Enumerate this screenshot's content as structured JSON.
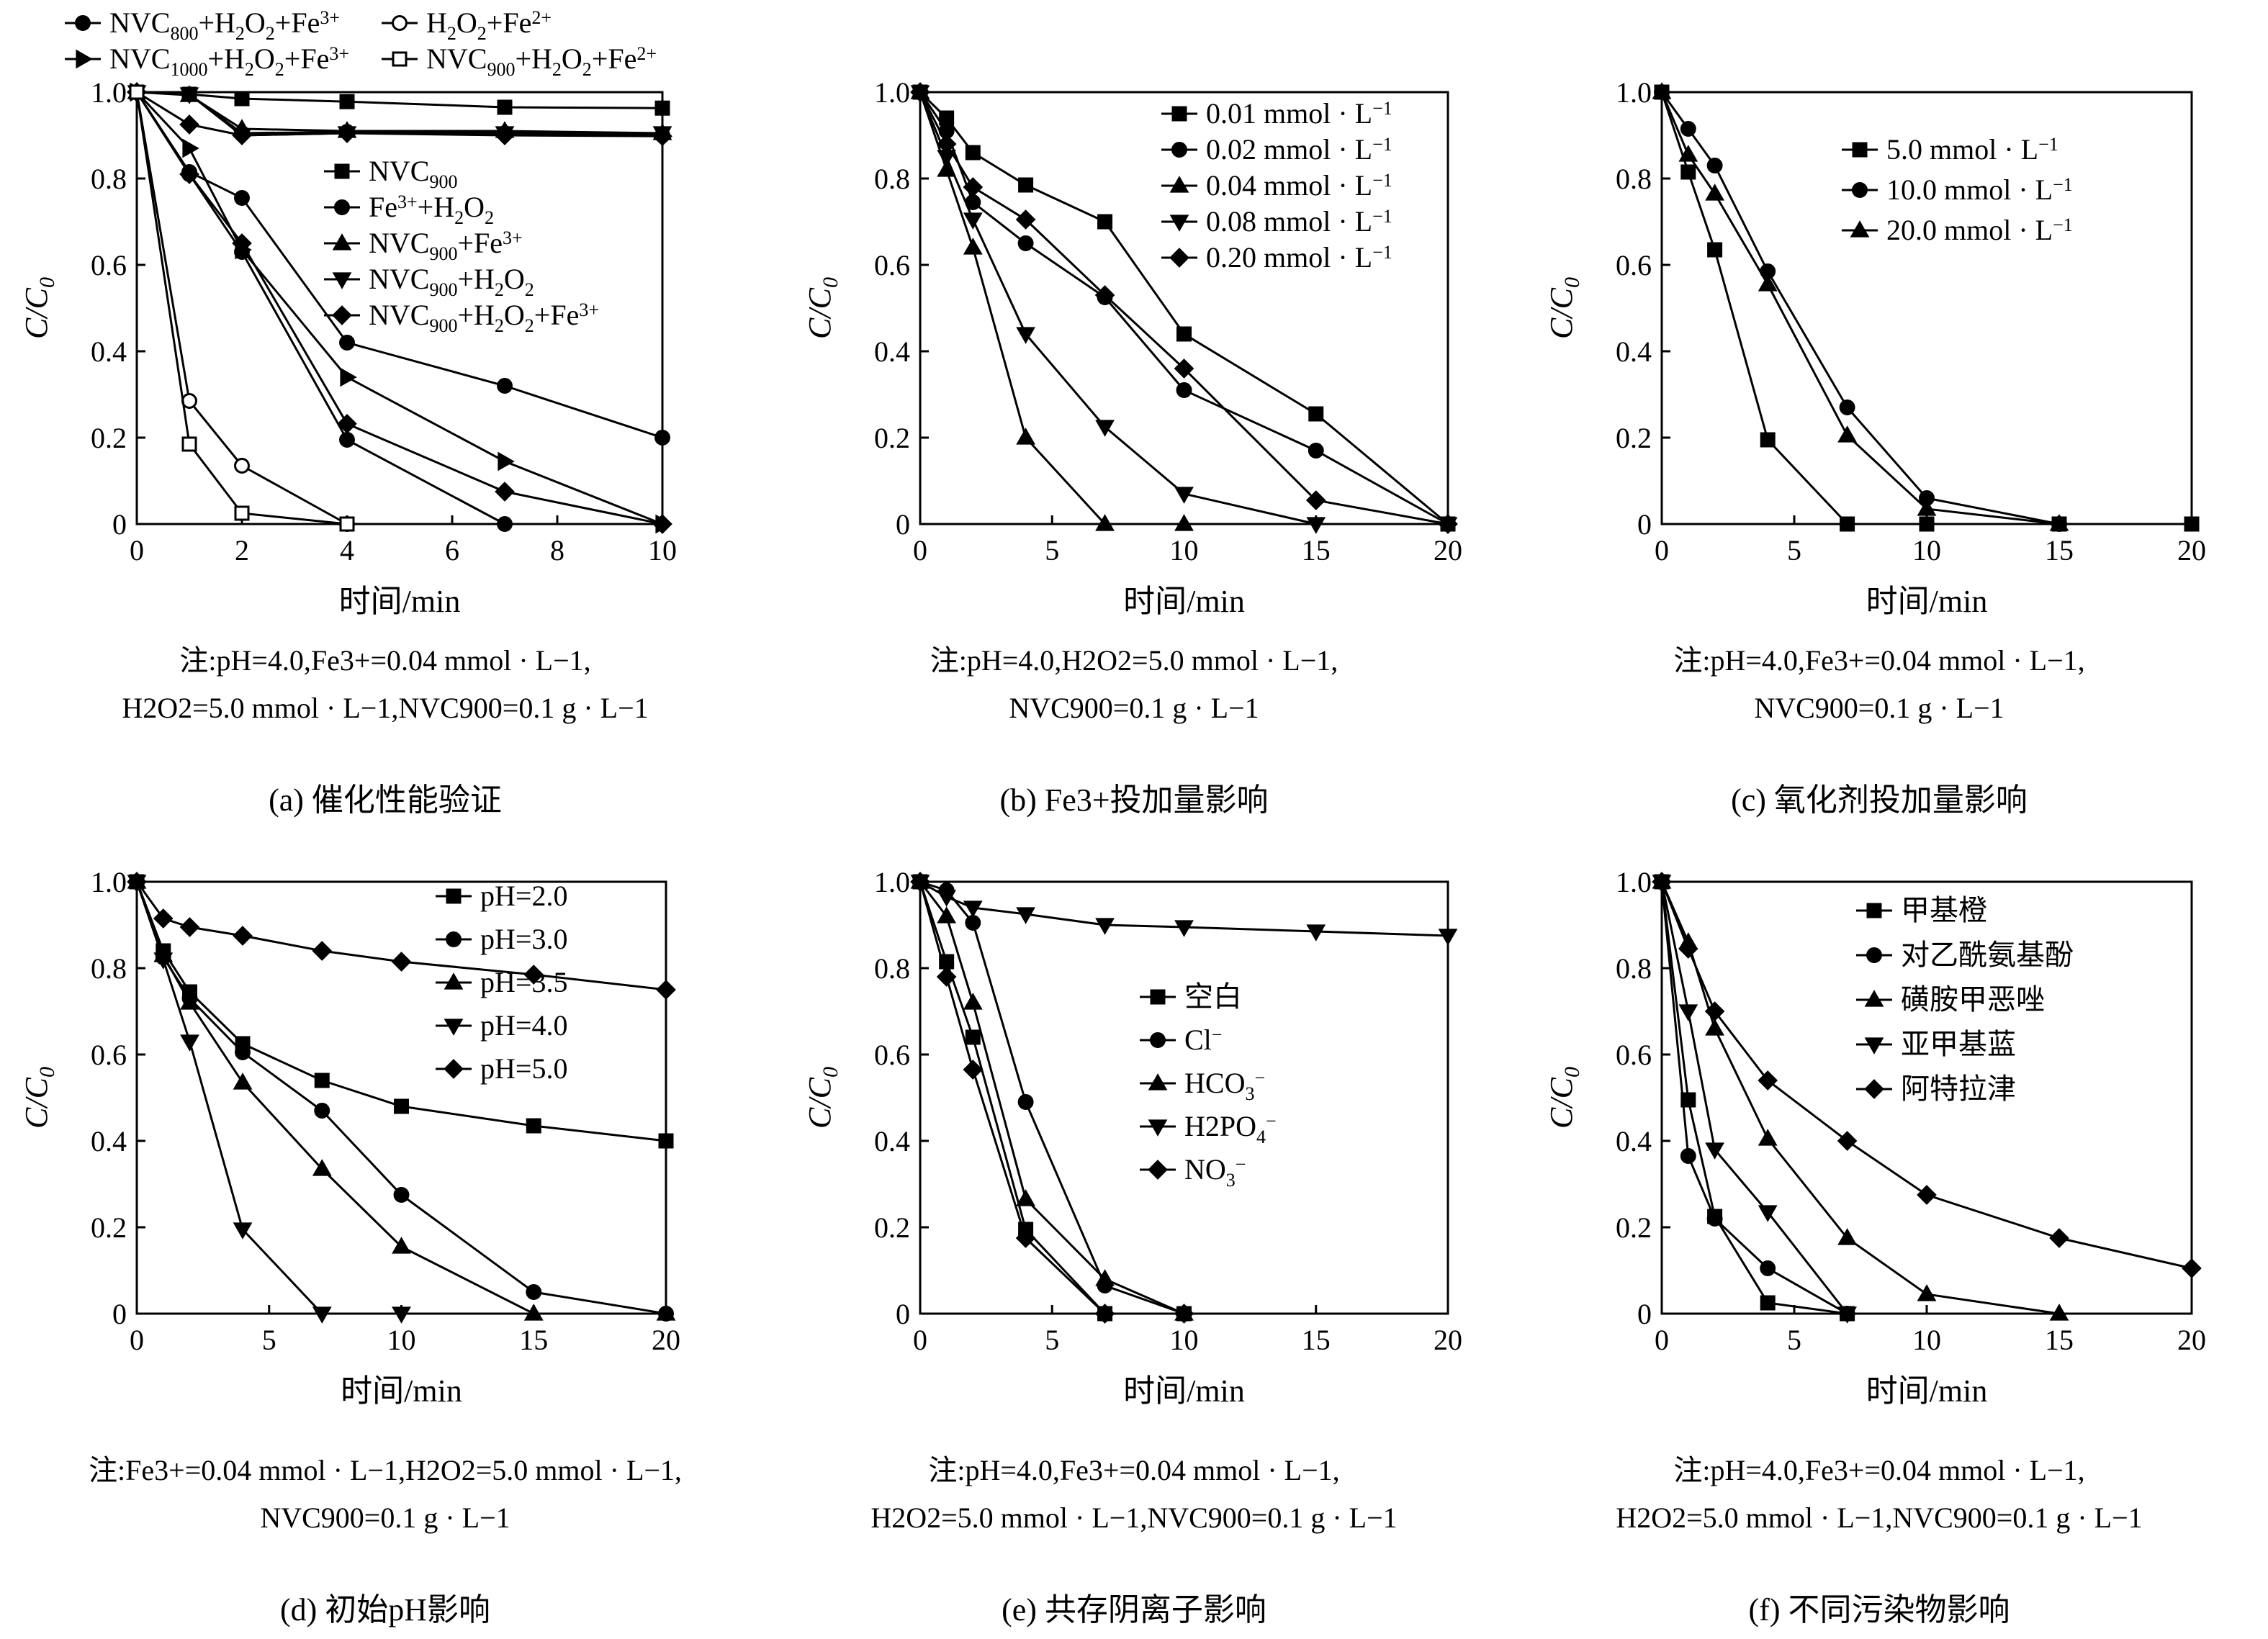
{
  "chart_data": [
    {
      "type": "line",
      "panel": "a",
      "xlabel": "时间/min",
      "ylabel": "C/C0",
      "xlim": [
        0,
        10
      ],
      "ylim": [
        0,
        1.0
      ],
      "xticks": [
        0,
        2,
        4,
        6,
        8,
        10
      ],
      "yticks": [
        0,
        0.2,
        0.4,
        0.6,
        0.8,
        1.0
      ],
      "ytick_labels": [
        "0",
        "0.2",
        "0.4",
        "0.6",
        "0.8",
        "1.0"
      ],
      "legend_top": [
        "NVC800+H2O2+Fe3+",
        "H2O2+Fe2+",
        "NVC1000+H2O2+Fe3+",
        "NVC900+H2O2+Fe2+"
      ],
      "legend_inner": [
        "NVC900",
        "Fe3++H2O2",
        "NVC900+Fe3+",
        "NVC900+H2O2",
        "NVC900+H2O2+Fe3+"
      ],
      "series": [
        {
          "name": "NVC900",
          "marker": "square",
          "x": [
            0,
            1,
            2,
            4,
            7,
            10
          ],
          "y": [
            1.0,
            0.995,
            0.985,
            0.978,
            0.965,
            0.963
          ]
        },
        {
          "name": "Fe3++H2O2",
          "marker": "circle",
          "x": [
            0,
            1,
            2,
            4,
            7,
            10
          ],
          "y": [
            1.0,
            0.995,
            0.905,
            0.908,
            0.905,
            0.9
          ]
        },
        {
          "name": "NVC900+Fe3+",
          "marker": "triangle-up",
          "x": [
            0,
            1,
            2,
            4,
            7,
            10
          ],
          "y": [
            1.0,
            0.993,
            0.915,
            0.91,
            0.91,
            0.905
          ]
        },
        {
          "name": "NVC900+H2O2",
          "marker": "triangle-down",
          "x": [
            0,
            1,
            2,
            4,
            7,
            10
          ],
          "y": [
            1.0,
            0.995,
            0.9,
            0.905,
            0.905,
            0.905
          ]
        },
        {
          "name": "NVC900+H2O2+Fe3+",
          "marker": "diamond",
          "x": [
            0,
            1,
            2,
            4,
            7,
            10
          ],
          "y": [
            1.0,
            0.925,
            0.9,
            0.905,
            0.9,
            0.898
          ]
        },
        {
          "name": "NVC800+H2O2+Fe3+",
          "marker": "circle",
          "x": [
            0,
            1,
            2,
            4,
            7,
            10
          ],
          "y": [
            1.0,
            0.815,
            0.755,
            0.42,
            0.32,
            0.2
          ]
        },
        {
          "name": "NVC1000+H2O2+Fe3+",
          "marker": "triangle-right",
          "x": [
            0,
            1,
            2,
            4,
            7,
            10
          ],
          "y": [
            1.0,
            0.87,
            0.635,
            0.34,
            0.145,
            0.0
          ]
        },
        {
          "name": "NVC900+H2O2+Fe3+ (b)",
          "marker": "diamond",
          "x": [
            0,
            1,
            2,
            4,
            7,
            10
          ],
          "y": [
            1.0,
            0.81,
            0.65,
            0.232,
            0.075,
            0.0
          ]
        },
        {
          "name": "NVC900+H2O2+Fe3+ (c)",
          "marker": "circle",
          "x": [
            0,
            1,
            2,
            4,
            7
          ],
          "y": [
            1.0,
            0.81,
            0.63,
            0.195,
            0.0
          ]
        },
        {
          "name": "H2O2+Fe2+",
          "marker": "circle-open",
          "x": [
            0,
            1,
            2,
            4
          ],
          "y": [
            1.0,
            0.285,
            0.135,
            0.0
          ]
        },
        {
          "name": "NVC900+H2O2+Fe2+",
          "marker": "square-open",
          "x": [
            0,
            1,
            2,
            4
          ],
          "y": [
            1.0,
            0.185,
            0.025,
            0.0
          ]
        }
      ]
    },
    {
      "type": "line",
      "panel": "b",
      "xlabel": "时间/min",
      "ylabel": "C/C0",
      "xlim": [
        0,
        20
      ],
      "ylim": [
        0,
        1.0
      ],
      "xticks": [
        0,
        5,
        10,
        15,
        20
      ],
      "yticks": [
        0,
        0.2,
        0.4,
        0.6,
        0.8,
        1.0
      ],
      "ytick_labels": [
        "0",
        "0.2",
        "0.4",
        "0.6",
        "0.8",
        "1.0"
      ],
      "series": [
        {
          "name": "0.01 mmol · L−1",
          "marker": "square",
          "x": [
            0,
            1,
            2,
            4,
            7,
            10,
            15,
            20
          ],
          "y": [
            1.0,
            0.94,
            0.86,
            0.785,
            0.7,
            0.44,
            0.255,
            0.0
          ]
        },
        {
          "name": "0.02 mmol · L−1",
          "marker": "circle",
          "x": [
            0,
            1,
            2,
            4,
            7,
            10,
            15,
            20
          ],
          "y": [
            1.0,
            0.91,
            0.745,
            0.65,
            0.525,
            0.31,
            0.17,
            0.0
          ]
        },
        {
          "name": "0.04 mmol · L−1",
          "marker": "triangle-up",
          "x": [
            0,
            1,
            2,
            4,
            7,
            10
          ],
          "y": [
            1.0,
            0.82,
            0.64,
            0.2,
            0.0,
            0.0
          ]
        },
        {
          "name": "0.08 mmol · L−1",
          "marker": "triangle-down",
          "x": [
            0,
            1,
            2,
            4,
            7,
            10,
            15,
            20
          ],
          "y": [
            1.0,
            0.85,
            0.705,
            0.44,
            0.225,
            0.07,
            0.0,
            0.0
          ]
        },
        {
          "name": "0.20 mmol · L−1",
          "marker": "diamond",
          "x": [
            0,
            1,
            2,
            4,
            7,
            10,
            15,
            20
          ],
          "y": [
            1.0,
            0.88,
            0.78,
            0.705,
            0.53,
            0.36,
            0.055,
            0.0
          ]
        }
      ]
    },
    {
      "type": "line",
      "panel": "c",
      "xlabel": "时间/min",
      "ylabel": "C/C0",
      "xlim": [
        0,
        20
      ],
      "ylim": [
        0,
        1.0
      ],
      "xticks": [
        0,
        5,
        10,
        15,
        20
      ],
      "yticks": [
        0,
        0.2,
        0.4,
        0.6,
        0.8,
        1.0
      ],
      "ytick_labels": [
        "0",
        "0.2",
        "0.4",
        "0.6",
        "0.8",
        "1.0"
      ],
      "series": [
        {
          "name": "5.0 mmol · L−1",
          "marker": "square",
          "x": [
            0,
            1,
            2,
            4,
            7,
            10,
            15,
            20
          ],
          "y": [
            1.0,
            0.815,
            0.635,
            0.195,
            0.0,
            0.0,
            0.0,
            0.0
          ]
        },
        {
          "name": "10.0 mmol · L−1",
          "marker": "circle",
          "x": [
            0,
            1,
            2,
            4,
            7,
            10,
            15
          ],
          "y": [
            1.0,
            0.915,
            0.83,
            0.585,
            0.27,
            0.06,
            0.0
          ]
        },
        {
          "name": "20.0 mmol · L−1",
          "marker": "triangle-up",
          "x": [
            0,
            1,
            2,
            4,
            7,
            10,
            15
          ],
          "y": [
            1.0,
            0.855,
            0.765,
            0.555,
            0.205,
            0.035,
            0.0
          ]
        }
      ]
    },
    {
      "type": "line",
      "panel": "d",
      "xlabel": "时间/min",
      "ylabel": "C/C0",
      "xlim": [
        0,
        20
      ],
      "ylim": [
        0,
        1.0
      ],
      "xticks": [
        0,
        5,
        10,
        15,
        20
      ],
      "yticks": [
        0,
        0.2,
        0.4,
        0.6,
        0.8,
        1.0
      ],
      "ytick_labels": [
        "0",
        "0.2",
        "0.4",
        "0.6",
        "0.8",
        "1.0"
      ],
      "series": [
        {
          "name": "pH=2.0",
          "marker": "square",
          "x": [
            0,
            1,
            2,
            4,
            7,
            10,
            15,
            20
          ],
          "y": [
            1.0,
            0.84,
            0.745,
            0.625,
            0.54,
            0.48,
            0.435,
            0.4
          ]
        },
        {
          "name": "pH=3.0",
          "marker": "circle",
          "x": [
            0,
            1,
            2,
            4,
            7,
            10,
            15,
            20
          ],
          "y": [
            1.0,
            0.825,
            0.73,
            0.605,
            0.47,
            0.275,
            0.05,
            0.0
          ]
        },
        {
          "name": "pH=3.5",
          "marker": "triangle-up",
          "x": [
            0,
            1,
            2,
            4,
            7,
            10,
            15,
            20
          ],
          "y": [
            1.0,
            0.83,
            0.72,
            0.535,
            0.335,
            0.155,
            0.0,
            0.0
          ]
        },
        {
          "name": "pH=4.0",
          "marker": "triangle-down",
          "x": [
            0,
            1,
            2,
            4,
            7,
            10
          ],
          "y": [
            1.0,
            0.82,
            0.63,
            0.195,
            0.0,
            0.0
          ]
        },
        {
          "name": "pH=5.0",
          "marker": "diamond",
          "x": [
            0,
            1,
            2,
            4,
            7,
            10,
            15,
            20
          ],
          "y": [
            1.0,
            0.915,
            0.895,
            0.875,
            0.84,
            0.815,
            0.785,
            0.75
          ]
        }
      ]
    },
    {
      "type": "line",
      "panel": "e",
      "xlabel": "时间/min",
      "ylabel": "C/C0",
      "xlim": [
        0,
        20
      ],
      "ylim": [
        0,
        1.0
      ],
      "xticks": [
        0,
        5,
        10,
        15,
        20
      ],
      "yticks": [
        0,
        0.2,
        0.4,
        0.6,
        0.8,
        1.0
      ],
      "ytick_labels": [
        "0",
        "0.2",
        "0.4",
        "0.6",
        "0.8",
        "1.0"
      ],
      "series": [
        {
          "name": "空白",
          "marker": "square",
          "x": [
            0,
            1,
            2,
            4,
            7,
            10
          ],
          "y": [
            1.0,
            0.815,
            0.64,
            0.195,
            0.0,
            0.0
          ]
        },
        {
          "name": "Cl−",
          "marker": "circle",
          "x": [
            0,
            1,
            2,
            4,
            7,
            10
          ],
          "y": [
            1.0,
            0.98,
            0.905,
            0.49,
            0.065,
            0.0
          ]
        },
        {
          "name": "HCO3−",
          "marker": "triangle-up",
          "x": [
            0,
            1,
            2,
            4,
            7,
            10
          ],
          "y": [
            1.0,
            0.92,
            0.72,
            0.265,
            0.08,
            0.0
          ]
        },
        {
          "name": "H2PO4−",
          "marker": "triangle-down",
          "x": [
            0,
            1,
            2,
            4,
            7,
            10,
            15,
            20
          ],
          "y": [
            1.0,
            0.965,
            0.94,
            0.925,
            0.9,
            0.895,
            0.885,
            0.875
          ]
        },
        {
          "name": "NO3−",
          "marker": "diamond",
          "x": [
            0,
            1,
            2,
            4,
            7,
            10
          ],
          "y": [
            1.0,
            0.78,
            0.565,
            0.175,
            0.0,
            0.0
          ]
        }
      ]
    },
    {
      "type": "line",
      "panel": "f",
      "xlabel": "时间/min",
      "ylabel": "C/C0",
      "xlim": [
        0,
        20
      ],
      "ylim": [
        0,
        1.0
      ],
      "xticks": [
        0,
        5,
        10,
        15,
        20
      ],
      "yticks": [
        0,
        0.2,
        0.4,
        0.6,
        0.8,
        1.0
      ],
      "ytick_labels": [
        "0",
        "0.2",
        "0.4",
        "0.6",
        "0.8",
        "1.0"
      ],
      "series": [
        {
          "name": "甲基橙",
          "marker": "square",
          "x": [
            0,
            1,
            2,
            4,
            7
          ],
          "y": [
            1.0,
            0.495,
            0.225,
            0.025,
            0.0
          ]
        },
        {
          "name": "对乙酰氨基酚",
          "marker": "circle",
          "x": [
            0,
            1,
            2,
            4,
            7
          ],
          "y": [
            1.0,
            0.365,
            0.22,
            0.105,
            0.0
          ]
        },
        {
          "name": "磺胺甲恶唑",
          "marker": "triangle-up",
          "x": [
            0,
            1,
            2,
            4,
            7,
            10,
            15
          ],
          "y": [
            1.0,
            0.86,
            0.66,
            0.405,
            0.175,
            0.045,
            0.0
          ]
        },
        {
          "name": "亚甲基蓝",
          "marker": "triangle-down",
          "x": [
            0,
            1,
            2,
            4,
            7
          ],
          "y": [
            1.0,
            0.7,
            0.38,
            0.235,
            0.0
          ]
        },
        {
          "name": "阿特拉津",
          "marker": "diamond",
          "x": [
            0,
            1,
            2,
            4,
            7,
            10,
            15,
            20
          ],
          "y": [
            1.0,
            0.845,
            0.7,
            0.54,
            0.4,
            0.275,
            0.175,
            0.105
          ]
        }
      ]
    }
  ],
  "notes": {
    "a_line1": "注:pH=4.0,Fe3+=0.04 mmol · L−1,",
    "a_line2": "H2O2=5.0 mmol · L−1,NVC900=0.1 g · L−1",
    "b_line1": "注:pH=4.0,H2O2=5.0 mmol · L−1,",
    "b_line2": "NVC900=0.1 g · L−1",
    "c_line1": "注:pH=4.0,Fe3+=0.04 mmol · L−1,",
    "c_line2": "NVC900=0.1 g · L−1",
    "d_line1": "注:Fe3+=0.04 mmol · L−1,H2O2=5.0 mmol · L−1,",
    "d_line2": "NVC900=0.1 g · L−1",
    "e_line1": "注:pH=4.0,Fe3+=0.04 mmol · L−1,",
    "e_line2": "H2O2=5.0 mmol · L−1,NVC900=0.1 g · L−1",
    "f_line1": "注:pH=4.0,Fe3+=0.04 mmol · L−1,",
    "f_line2": "H2O2=5.0 mmol · L−1,NVC900=0.1 g · L−1"
  },
  "captions": {
    "a": "(a) 催化性能验证",
    "b": "(b) Fe3+投加量影响",
    "c": "(c) 氧化剂投加量影响",
    "d": "(d) 初始pH影响",
    "e": "(e) 共存阴离子影响",
    "f": "(f) 不同污染物影响"
  }
}
